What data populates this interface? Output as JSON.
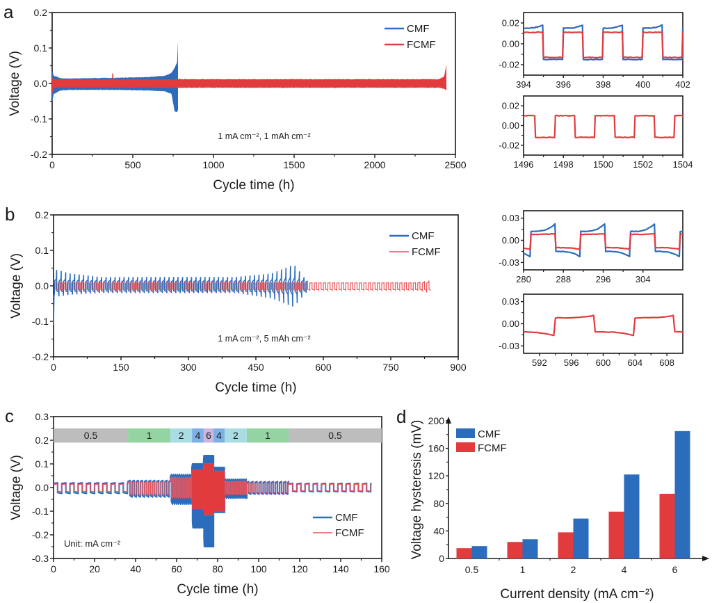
{
  "colors": {
    "CMF": "#2b6cbc",
    "FCMF": "#e23b3e",
    "FCMF_thin": "#e8545a"
  },
  "chart_data": [
    {
      "id": "a",
      "panel_label": "a",
      "type": "line",
      "xlabel": "Cycle time (h)",
      "ylabel": "Voltage (V)",
      "xlim": [
        0,
        2500
      ],
      "ylim": [
        -0.2,
        0.2
      ],
      "xticks": [
        0,
        500,
        1000,
        1500,
        2000,
        2500
      ],
      "yticks": [
        -0.2,
        -0.1,
        0.0,
        0.1,
        0.2
      ],
      "ytick_labels": [
        "-0.2",
        "-0.1",
        "0.0",
        "0.1",
        "0.2"
      ],
      "annotation": "1 mA cm⁻², 1 mAh cm⁻²",
      "legend": [
        "CMF",
        "FCMF"
      ],
      "legend_position": "top-right",
      "series": [
        {
          "name": "CMF",
          "envelope": {
            "x": [
              0,
              10,
              50,
              100,
              400,
              600,
              700,
              740,
              760,
              775,
              780
            ],
            "upper": [
              0.035,
              0.022,
              0.015,
              0.014,
              0.016,
              0.018,
              0.022,
              0.03,
              0.045,
              0.06,
              0.12
            ],
            "lower": [
              -0.05,
              -0.03,
              -0.02,
              -0.018,
              -0.018,
              -0.02,
              -0.022,
              -0.03,
              -0.08,
              -0.08,
              -0.075
            ]
          }
        },
        {
          "name": "FCMF",
          "envelope": {
            "x": [
              0,
              10,
              380,
              2400,
              2430,
              2445
            ],
            "upper": [
              0.018,
              0.012,
              0.012,
              0.012,
              0.02,
              0.055
            ],
            "lower": [
              -0.03,
              -0.012,
              -0.012,
              -0.012,
              -0.015,
              -0.02
            ]
          },
          "spike": {
            "x": 375,
            "y": 0.028
          }
        }
      ]
    },
    {
      "id": "a-inset-1",
      "type": "line",
      "xlim": [
        394,
        402
      ],
      "ylim": [
        -0.03,
        0.03
      ],
      "xticks": [
        394,
        396,
        398,
        400,
        402
      ],
      "yticks": [
        -0.02,
        0.0,
        0.02
      ],
      "ytick_labels": [
        "-0.02",
        "0.00",
        "0.02"
      ],
      "period_h": 2,
      "first_rise_h": 395,
      "series": [
        {
          "name": "CMF",
          "high": 0.015,
          "high_end": 0.018,
          "low": -0.015
        },
        {
          "name": "FCMF",
          "high": 0.011,
          "high_end": 0.011,
          "low": -0.013
        }
      ]
    },
    {
      "id": "a-inset-2",
      "type": "line",
      "xlim": [
        1496,
        1504
      ],
      "ylim": [
        -0.03,
        0.03
      ],
      "xticks": [
        1496,
        1498,
        1500,
        1502,
        1504
      ],
      "yticks": [
        -0.02,
        0.0,
        0.02
      ],
      "ytick_labels": [
        "-0.02",
        "0.00",
        "0.02"
      ],
      "period_h": 2,
      "first_rise_h": 1496.6,
      "series": [
        {
          "name": "FCMF",
          "high": 0.01,
          "high_end": 0.01,
          "low": -0.012
        }
      ]
    },
    {
      "id": "b",
      "panel_label": "b",
      "type": "line",
      "xlabel": "Cycle time (h)",
      "ylabel": "Voltage (V)",
      "xlim": [
        0,
        900
      ],
      "ylim": [
        -0.2,
        0.2
      ],
      "xticks": [
        0,
        150,
        300,
        450,
        600,
        750,
        900
      ],
      "yticks": [
        -0.2,
        -0.1,
        0.0,
        0.1,
        0.2
      ],
      "ytick_labels": [
        "-0.2",
        "-0.1",
        "0.0",
        "0.1",
        "0.2"
      ],
      "annotation": "1 mA cm⁻², 5 mAh cm⁻²",
      "legend": [
        "CMF",
        "FCMF"
      ],
      "legend_position": "top-right",
      "period_h": 10,
      "series": [
        {
          "name": "CMF",
          "x_end": 565,
          "peaks": {
            "x": [
              5,
              30,
              100,
              400,
              480,
              530,
              555,
              565
            ],
            "upper": [
              0.045,
              0.035,
              0.025,
              0.025,
              0.035,
              0.06,
              0.02,
              0.012
            ],
            "lower": [
              -0.03,
              -0.025,
              -0.02,
              -0.02,
              -0.035,
              -0.06,
              -0.02,
              -0.015
            ]
          }
        },
        {
          "name": "FCMF",
          "x_end": 838,
          "peaks": {
            "x": [
              0,
              800,
              830,
              838
            ],
            "upper": [
              0.01,
              0.01,
              0.015,
              0.028
            ],
            "lower": [
              -0.012,
              -0.012,
              -0.02,
              -0.01
            ]
          }
        }
      ]
    },
    {
      "id": "b-inset-1",
      "type": "line",
      "xlim": [
        280,
        312
      ],
      "ylim": [
        -0.04,
        0.04
      ],
      "xticks": [
        280,
        288,
        296,
        304
      ],
      "yticks": [
        -0.03,
        0.0,
        0.03
      ],
      "ytick_labels": [
        "-0.03",
        "0.00",
        "0.03"
      ],
      "period_h": 10,
      "first_fall_h": 281.5,
      "series": [
        {
          "name": "CMF",
          "high": 0.012,
          "high_end": 0.022,
          "low": -0.015,
          "low_end": -0.022
        },
        {
          "name": "FCMF",
          "high": 0.008,
          "high_end": 0.009,
          "low": -0.01,
          "low_end": -0.012
        }
      ]
    },
    {
      "id": "b-inset-2",
      "type": "line",
      "xlim": [
        590,
        610
      ],
      "ylim": [
        -0.04,
        0.04
      ],
      "xticks": [
        592,
        596,
        600,
        604,
        608
      ],
      "yticks": [
        -0.03,
        0.0,
        0.03
      ],
      "ytick_labels": [
        "-0.03",
        "0.00",
        "0.03"
      ],
      "period_h": 10,
      "first_fall_h": 594,
      "series": [
        {
          "name": "FCMF",
          "high": 0.008,
          "high_end": 0.011,
          "low": -0.011,
          "low_end": -0.016
        }
      ]
    },
    {
      "id": "c",
      "panel_label": "c",
      "type": "line",
      "xlabel": "Cycle time (h)",
      "ylabel": "Voltage (V)",
      "xlim": [
        0,
        160
      ],
      "ylim": [
        -0.3,
        0.3
      ],
      "xticks": [
        0,
        20,
        40,
        60,
        80,
        100,
        120,
        140,
        160
      ],
      "yticks": [
        -0.3,
        -0.2,
        -0.1,
        0.0,
        0.1,
        0.2,
        0.3
      ],
      "ytick_labels": [
        "-0.3",
        "-0.2",
        "-0.1",
        "0.0",
        "0.1",
        "0.2",
        "0.3"
      ],
      "annotation": "Unit: mA cm⁻²",
      "legend": [
        "CMF",
        "FCMF"
      ],
      "legend_position": "bottom-right",
      "rate_band": {
        "y_range": [
          0.19,
          0.25
        ],
        "segments": [
          {
            "label": "0.5",
            "x0": 0,
            "x1": 36.3,
            "color": "#bdbdbd"
          },
          {
            "label": "1",
            "x0": 36.3,
            "x1": 57,
            "color": "#94d3a2"
          },
          {
            "label": "2",
            "x0": 57,
            "x1": 67.5,
            "color": "#a9dde3"
          },
          {
            "label": "4",
            "x0": 67.5,
            "x1": 73.2,
            "color": "#7fb0e3"
          },
          {
            "label": "6",
            "x0": 73.2,
            "x1": 78,
            "color": "#cdb7e0"
          },
          {
            "label": "4",
            "x0": 78,
            "x1": 83.4,
            "color": "#7fb0e3"
          },
          {
            "label": "2",
            "x0": 83.4,
            "x1": 94.2,
            "color": "#a9dde3"
          },
          {
            "label": "1",
            "x0": 94.2,
            "x1": 114.6,
            "color": "#94d3a2"
          },
          {
            "label": "0.5",
            "x0": 114.6,
            "x1": 160,
            "color": "#bdbdbd"
          }
        ]
      },
      "stages": [
        {
          "x0": 0,
          "x1": 36.3,
          "period": 4,
          "CMF": [
            0.02,
            -0.025
          ],
          "FCMF": [
            0.015,
            -0.018
          ]
        },
        {
          "x0": 36.3,
          "x1": 57,
          "period": 2,
          "CMF": [
            0.03,
            -0.04
          ],
          "FCMF": [
            0.025,
            -0.03
          ]
        },
        {
          "x0": 57,
          "x1": 67.5,
          "period": 1,
          "CMF": [
            0.055,
            -0.07
          ],
          "FCMF": [
            0.045,
            -0.045
          ]
        },
        {
          "x0": 67.5,
          "x1": 73.2,
          "period": 0.5,
          "CMF": [
            0.1,
            -0.17
          ],
          "FCMF": [
            0.075,
            -0.09
          ]
        },
        {
          "x0": 73.2,
          "x1": 78,
          "period": 0.33,
          "CMF": [
            0.135,
            -0.25
          ],
          "FCMF": [
            0.1,
            -0.115
          ]
        },
        {
          "x0": 78,
          "x1": 83.4,
          "period": 0.5,
          "CMF": [
            0.085,
            -0.105
          ],
          "FCMF": [
            0.07,
            -0.1
          ]
        },
        {
          "x0": 83.4,
          "x1": 94.2,
          "period": 1,
          "CMF": [
            0.035,
            -0.045
          ],
          "FCMF": [
            0.028,
            -0.03
          ]
        },
        {
          "x0": 94.2,
          "x1": 114.6,
          "period": 2,
          "CMF": [
            0.025,
            -0.028
          ],
          "FCMF": [
            0.02,
            -0.022
          ]
        },
        {
          "x0": 114.6,
          "x1": 155,
          "period": 4,
          "CMF": [
            0.018,
            -0.018
          ],
          "FCMF": [
            0.015,
            -0.015
          ]
        }
      ]
    },
    {
      "id": "d",
      "panel_label": "d",
      "type": "bar",
      "xlabel": "Current density (mA cm⁻²)",
      "ylabel": "Voltage hysteresis (mV)",
      "ylim": [
        0,
        200
      ],
      "yticks": [
        0,
        40,
        80,
        120,
        160,
        200
      ],
      "categories": [
        "0.5",
        "1",
        "2",
        "4",
        "6"
      ],
      "legend": [
        "CMF",
        "FCMF"
      ],
      "legend_position": "top-left",
      "series": [
        {
          "name": "FCMF",
          "values": [
            15,
            24,
            38,
            68,
            94
          ]
        },
        {
          "name": "CMF",
          "values": [
            18,
            28,
            58,
            122,
            185
          ]
        }
      ]
    }
  ]
}
